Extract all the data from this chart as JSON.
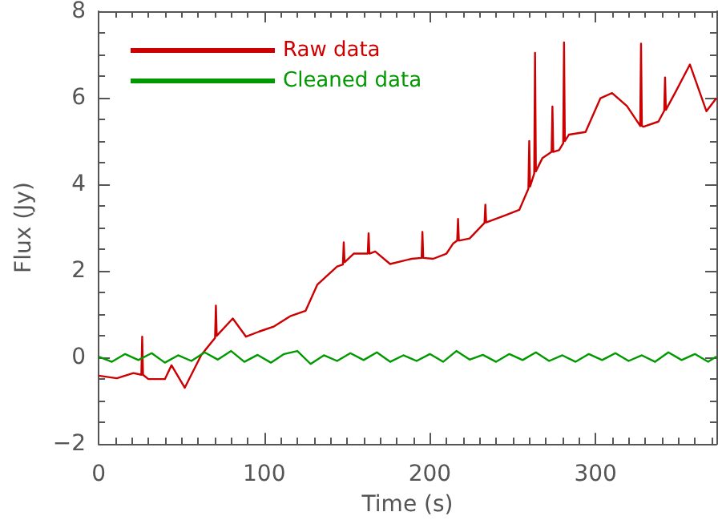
{
  "chart_data": {
    "type": "line",
    "xlabel": "Time (s)",
    "ylabel": "Flux (Jy)",
    "xlim": [
      0,
      373
    ],
    "xticks": [
      0,
      100,
      200,
      300
    ],
    "ylim": [
      -2,
      8
    ],
    "yticks": [
      -2,
      0,
      2,
      4,
      6,
      8
    ],
    "grid": false,
    "legend": "top left",
    "marker": "none",
    "line_style": "solid",
    "series": [
      {
        "name": "Raw data",
        "color": "#cc0000",
        "x": [
          0,
          11,
          21,
          25.8,
          26.3,
          26.8,
          30,
          40,
          44,
          52,
          62,
          70.3,
          70.8,
          71.3,
          81,
          89,
          97,
          106,
          116,
          125,
          132,
          144,
          147.5,
          148,
          148.5,
          154,
          162.5,
          163,
          163.5,
          167,
          176,
          189,
          195,
          195.5,
          196,
          202,
          210,
          214,
          216.5,
          217,
          217.5,
          224,
          233,
          233.5,
          234,
          246,
          254,
          259.5,
          260,
          260.5,
          263,
          263.5,
          264,
          268,
          273.5,
          274,
          274.5,
          278,
          280.5,
          281,
          281.5,
          284,
          294,
          303,
          310,
          319,
          327,
          327.5,
          328,
          329,
          338,
          341.5,
          342,
          342.5,
          348,
          357,
          367,
          373
        ],
        "values": [
          -0.42,
          -0.48,
          -0.36,
          -0.4,
          0.48,
          -0.4,
          -0.5,
          -0.5,
          -0.18,
          -0.7,
          0.06,
          0.45,
          1.2,
          0.5,
          0.9,
          0.48,
          0.6,
          0.72,
          0.96,
          1.08,
          1.68,
          2.1,
          2.15,
          2.66,
          2.2,
          2.4,
          2.4,
          2.87,
          2.4,
          2.45,
          2.16,
          2.28,
          2.3,
          2.9,
          2.3,
          2.28,
          2.4,
          2.63,
          2.7,
          3.2,
          2.7,
          2.75,
          3.11,
          3.53,
          3.12,
          3.29,
          3.41,
          3.9,
          5.0,
          3.95,
          4.25,
          7.04,
          4.3,
          4.61,
          4.75,
          5.8,
          4.75,
          4.79,
          4.95,
          7.28,
          5.0,
          5.15,
          5.21,
          5.99,
          6.11,
          5.81,
          5.35,
          7.25,
          5.35,
          5.33,
          5.45,
          5.7,
          6.47,
          5.72,
          6.11,
          6.77,
          5.69,
          5.99
        ]
      },
      {
        "name": "Cleaned data",
        "color": "#009900",
        "x": [
          0,
          8,
          16,
          24,
          32,
          40,
          48,
          56,
          64,
          72,
          80,
          88,
          96,
          104,
          112,
          120,
          128,
          136,
          144,
          152,
          160,
          168,
          176,
          184,
          192,
          200,
          208,
          216,
          224,
          232,
          240,
          248,
          256,
          264,
          272,
          280,
          288,
          296,
          304,
          312,
          320,
          328,
          336,
          344,
          352,
          360,
          368,
          373
        ],
        "values": [
          0.02,
          -0.1,
          0.08,
          -0.06,
          0.1,
          -0.12,
          0.05,
          -0.08,
          0.12,
          -0.05,
          0.15,
          -0.1,
          0.06,
          -0.12,
          0.08,
          0.15,
          -0.15,
          0.05,
          -0.08,
          0.1,
          -0.06,
          0.12,
          -0.1,
          0.05,
          -0.08,
          0.08,
          -0.1,
          0.15,
          -0.05,
          0.06,
          -0.1,
          0.08,
          -0.06,
          0.12,
          -0.08,
          0.05,
          -0.1,
          0.08,
          -0.06,
          0.1,
          -0.08,
          0.05,
          -0.1,
          0.12,
          -0.06,
          0.08,
          -0.1,
          0.02
        ]
      }
    ]
  }
}
